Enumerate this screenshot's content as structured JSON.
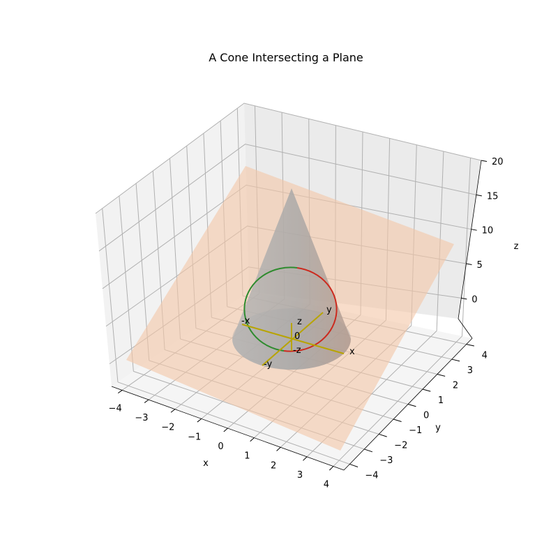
{
  "chart_data": {
    "type": "3d-surface",
    "title": "A Cone Intersecting a Plane",
    "xlabel": "x",
    "ylabel": "y",
    "zlabel": "z",
    "x_ticks": [
      "−4",
      "−3",
      "−2",
      "−1",
      "0",
      "1",
      "2",
      "3",
      "4"
    ],
    "y_ticks": [
      "−4",
      "−3",
      "−2",
      "−1",
      "0",
      "1",
      "2",
      "3",
      "4"
    ],
    "z_ticks": [
      "0",
      "5",
      "10",
      "15",
      "20"
    ],
    "xlim": [
      -4.4,
      4.4
    ],
    "ylim": [
      -4.4,
      4.4
    ],
    "zlim": [
      -3,
      20
    ],
    "grid": true,
    "surfaces": [
      {
        "kind": "cone",
        "apex": [
          0,
          0,
          18
        ],
        "base_radius": 2.3,
        "base_z": 0,
        "color": "#a9a9a9"
      },
      {
        "kind": "plane",
        "color": "#f4c7a6"
      }
    ],
    "intersection_curve": {
      "kind": "ellipse",
      "colors": [
        "#2e8b2e",
        "#cc2a1e"
      ]
    },
    "axis_markers": {
      "labels": [
        "x",
        "-x",
        "y",
        "-y",
        "z",
        "-z",
        "0"
      ],
      "color": "#b8a400"
    }
  }
}
